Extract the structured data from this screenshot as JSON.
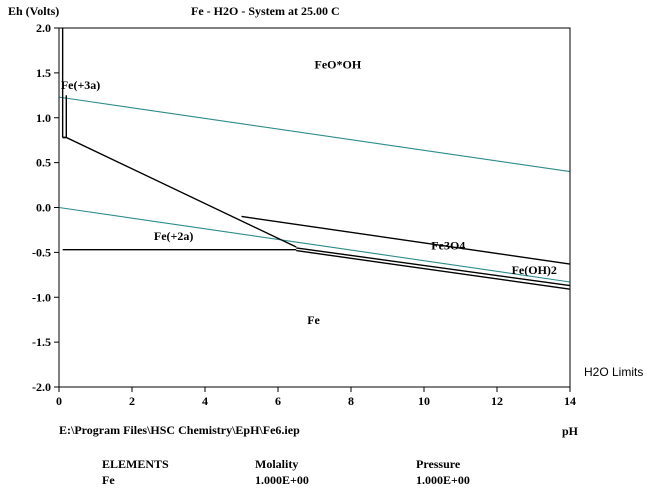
{
  "chart_data": {
    "type": "line",
    "title": "Fe - H2O - System at 25.00 C",
    "ylabel": "Eh (Volts)",
    "xlabel": "pH",
    "xlim": [
      0,
      14
    ],
    "ylim": [
      -2.0,
      2.0
    ],
    "x_ticks": [
      "0",
      "2",
      "4",
      "6",
      "8",
      "10",
      "12",
      "14"
    ],
    "y_ticks": [
      "2.0",
      "1.5",
      "1.0",
      "0.5",
      "0.0",
      "-0.5",
      "-1.0",
      "-1.5",
      "-2.0"
    ],
    "x_tick_values": [
      0,
      2,
      4,
      6,
      8,
      10,
      12,
      14
    ],
    "y_tick_values": [
      2.0,
      1.5,
      1.0,
      0.5,
      0.0,
      -0.5,
      -1.0,
      -1.5,
      -2.0
    ],
    "legend_note": "H2O Limits",
    "water_limits": [
      {
        "name": "upper",
        "color": "#2e8b8b",
        "x": [
          0,
          14
        ],
        "y": [
          1.23,
          0.4
        ]
      },
      {
        "name": "lower",
        "color": "#2e8b8b",
        "x": [
          0,
          14
        ],
        "y": [
          0.0,
          -0.83
        ]
      }
    ],
    "boundaries": [
      {
        "name": "Fe(+3a)/FeO*OH vertical (left)",
        "x": [
          0.1,
          0.1
        ],
        "y": [
          2.0,
          0.78
        ]
      },
      {
        "name": "Fe(+3a)/FeO*OH vertical (right)",
        "x": [
          0.2,
          0.2
        ],
        "y": [
          1.25,
          0.78
        ]
      },
      {
        "name": "Fe(+3a)/FeO*OH cap",
        "x": [
          0.1,
          0.2
        ],
        "y": [
          0.78,
          0.78
        ]
      },
      {
        "name": "Fe(+2a)/FeO*OH",
        "x": [
          0.1,
          0.2,
          6.5
        ],
        "y": [
          0.78,
          0.78,
          -0.44
        ]
      },
      {
        "name": "Fe(+2a)/Fe",
        "x": [
          0.1,
          6.5
        ],
        "y": [
          -0.47,
          -0.47
        ]
      },
      {
        "name": "FeO*OH/Fe3O4",
        "x": [
          5.0,
          14.0
        ],
        "y": [
          -0.1,
          -0.63
        ]
      },
      {
        "name": "Fe3O4/Fe(OH)2",
        "x": [
          6.5,
          14.0
        ],
        "y": [
          -0.45,
          -0.87
        ]
      },
      {
        "name": "Fe(OH)2/Fe",
        "x": [
          6.5,
          14.0
        ],
        "y": [
          -0.48,
          -0.91
        ]
      }
    ],
    "region_labels": [
      {
        "text": "FeO*OH",
        "x": 7.0,
        "y": 1.55
      },
      {
        "text": "Fe(+3a)",
        "x": 0.05,
        "y": 1.32
      },
      {
        "text": "Fe(+2a)",
        "x": 2.6,
        "y": -0.36
      },
      {
        "text": "Fe3O4",
        "x": 10.2,
        "y": -0.47
      },
      {
        "text": "Fe(OH)2",
        "x": 12.4,
        "y": -0.74
      },
      {
        "text": "Fe",
        "x": 6.8,
        "y": -1.3
      }
    ]
  },
  "footer": {
    "file_path": "E:\\Program Files\\HSC Chemistry\\EpH\\Fe6.iep",
    "elements_header": "ELEMENTS",
    "molality_header": "Molality",
    "pressure_header": "Pressure",
    "element": "Fe",
    "molality": "1.000E+00",
    "pressure": "1.000E+00"
  }
}
